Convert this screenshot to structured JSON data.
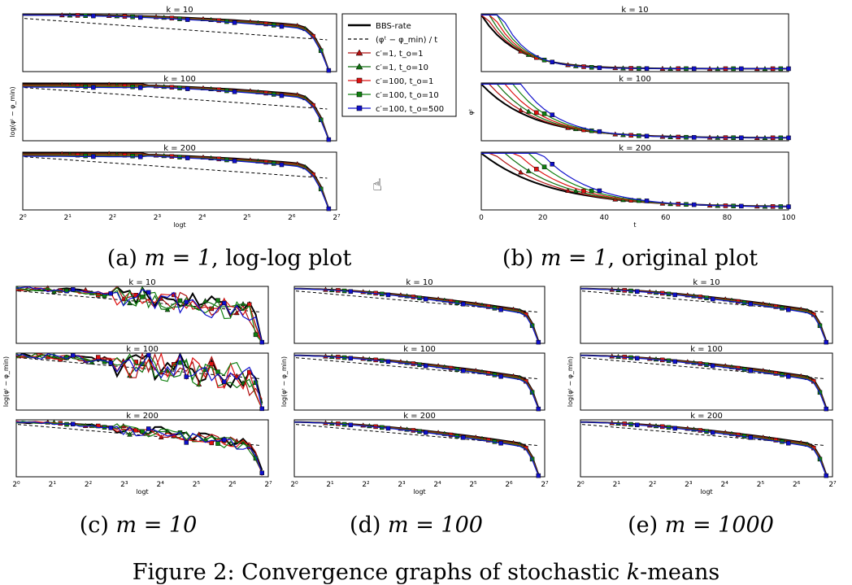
{
  "figure_caption": {
    "prefix": "Figure 2:",
    "text": "Convergence graphs of stochastic",
    "k": "k",
    "suffix": "-means"
  },
  "cursor_icon": "hand-pointer-icon",
  "legend": {
    "entries": [
      {
        "label": "BBS-rate",
        "color": "#000000",
        "style": "solid-thick",
        "marker": "none"
      },
      {
        "label": "(φᵗ − φ_min) / t",
        "color": "#000000",
        "style": "dashed",
        "marker": "none"
      },
      {
        "label": "c′=1, t_o=1",
        "color": "#b01010",
        "style": "solid",
        "marker": "triangle"
      },
      {
        "label": "c′=1, t_o=10",
        "color": "#107010",
        "style": "solid",
        "marker": "triangle"
      },
      {
        "label": "c′=100, t_o=1",
        "color": "#dd1010",
        "style": "solid",
        "marker": "square"
      },
      {
        "label": "c′=100, t_o=10",
        "color": "#108010",
        "style": "solid",
        "marker": "square"
      },
      {
        "label": "c′=100, t_o=500",
        "color": "#1010cc",
        "style": "solid",
        "marker": "square"
      }
    ]
  },
  "subfigures": [
    {
      "id": "a",
      "label": "(a)",
      "m": "m = 1",
      "desc": ", log-log plot",
      "type": "loglog",
      "ylabel": "log(φᵗ − φ_min)",
      "xlabel": "logt",
      "xticks": [
        "2⁰",
        "2¹",
        "2²",
        "2³",
        "2⁴",
        "2⁵",
        "2⁶",
        "2⁷"
      ],
      "panels": [
        {
          "title": "k = 10",
          "variant": 1
        },
        {
          "title": "k = 100",
          "variant": 2
        },
        {
          "title": "k = 200",
          "variant": 3
        }
      ]
    },
    {
      "id": "b",
      "label": "(b)",
      "m": "m = 1",
      "desc": ", original plot",
      "type": "linear",
      "ylabel": "φᵗ",
      "xlabel": "t",
      "xticks": [
        "0",
        "20",
        "40",
        "60",
        "80",
        "100"
      ],
      "panels": [
        {
          "title": "k = 10",
          "variant": 1
        },
        {
          "title": "k = 100",
          "variant": 2
        },
        {
          "title": "k = 200",
          "variant": 3
        }
      ]
    },
    {
      "id": "c",
      "label": "(c)",
      "m": "m = 10",
      "desc": "",
      "type": "loglog",
      "ylabel": "log(φᵗ − φ_min)",
      "xlabel": "logt",
      "xticks": [
        "2⁰",
        "2¹",
        "2²",
        "2³",
        "2⁴",
        "2⁵",
        "2⁶",
        "2⁷"
      ],
      "panels": [
        {
          "title": "k = 10",
          "variant": 4
        },
        {
          "title": "k = 100",
          "variant": 5
        },
        {
          "title": "k = 200",
          "variant": 6
        }
      ]
    },
    {
      "id": "d",
      "label": "(d)",
      "m": "m = 100",
      "desc": "",
      "type": "loglog",
      "ylabel": "log(φᵗ − φ_min)",
      "xlabel": "logt",
      "xticks": [
        "2⁰",
        "2¹",
        "2²",
        "2³",
        "2⁴",
        "2⁵",
        "2⁶",
        "2⁷"
      ],
      "panels": [
        {
          "title": "k = 10",
          "variant": 7
        },
        {
          "title": "k = 100",
          "variant": 8
        },
        {
          "title": "k = 200",
          "variant": 9
        }
      ]
    },
    {
      "id": "e",
      "label": "(e)",
      "m": "m = 1000",
      "desc": "",
      "type": "loglog",
      "ylabel": "log(φᵗ − φ_min)",
      "xlabel": "logt",
      "xticks": [
        "2⁰",
        "2¹",
        "2²",
        "2³",
        "2⁴",
        "2⁵",
        "2⁶",
        "2⁷"
      ],
      "panels": [
        {
          "title": "k = 10",
          "variant": 10
        },
        {
          "title": "k = 100",
          "variant": 11
        },
        {
          "title": "k = 200",
          "variant": 12
        }
      ]
    }
  ]
}
